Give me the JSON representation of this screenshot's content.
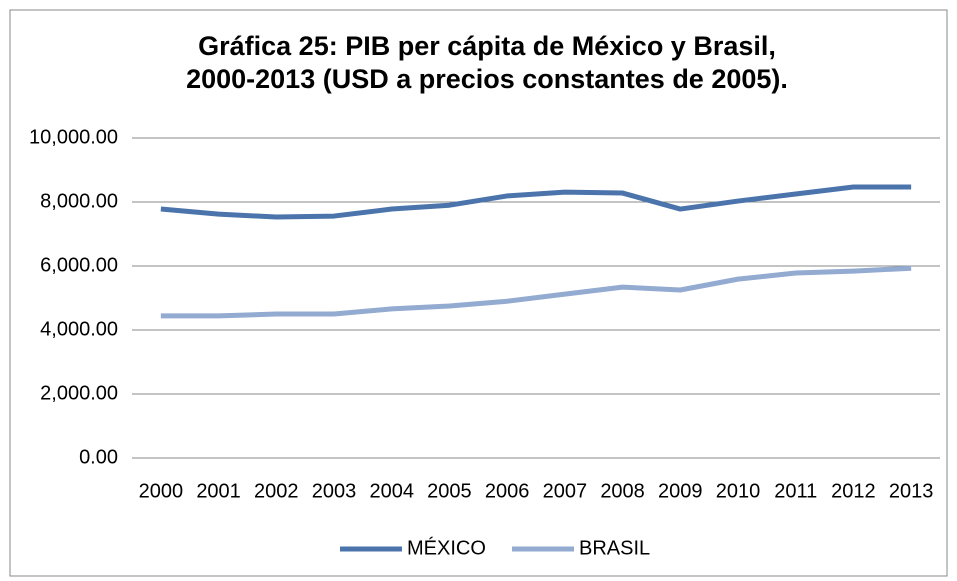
{
  "chart_data": {
    "type": "line",
    "title": [
      "Gráfica 25: PIB per cápita de México y Brasil,",
      "2000-2013 (USD a precios constantes de 2005)."
    ],
    "categories": [
      "2000",
      "2001",
      "2002",
      "2003",
      "2004",
      "2005",
      "2006",
      "2007",
      "2008",
      "2009",
      "2010",
      "2011",
      "2012",
      "2013"
    ],
    "series": [
      {
        "name": "MÉXICO",
        "color": "#4a74ab",
        "values": [
          7780,
          7620,
          7530,
          7560,
          7780,
          7900,
          8190,
          8310,
          8280,
          7780,
          8030,
          8250,
          8470,
          8470
        ]
      },
      {
        "name": "BRASIL",
        "color": "#93aad1",
        "values": [
          4440,
          4440,
          4500,
          4500,
          4660,
          4750,
          4900,
          5120,
          5340,
          5250,
          5590,
          5780,
          5840,
          5930
        ]
      }
    ],
    "ylim": [
      0,
      10000
    ],
    "yticks": [
      {
        "value": 0,
        "label": "0.00"
      },
      {
        "value": 2000,
        "label": "2,000.00"
      },
      {
        "value": 4000,
        "label": "4,000.00"
      },
      {
        "value": 6000,
        "label": "6,000.00"
      },
      {
        "value": 8000,
        "label": "8,000.00"
      },
      {
        "value": 10000,
        "label": "10,000.00"
      }
    ],
    "grid": true,
    "legend": "bottom"
  }
}
